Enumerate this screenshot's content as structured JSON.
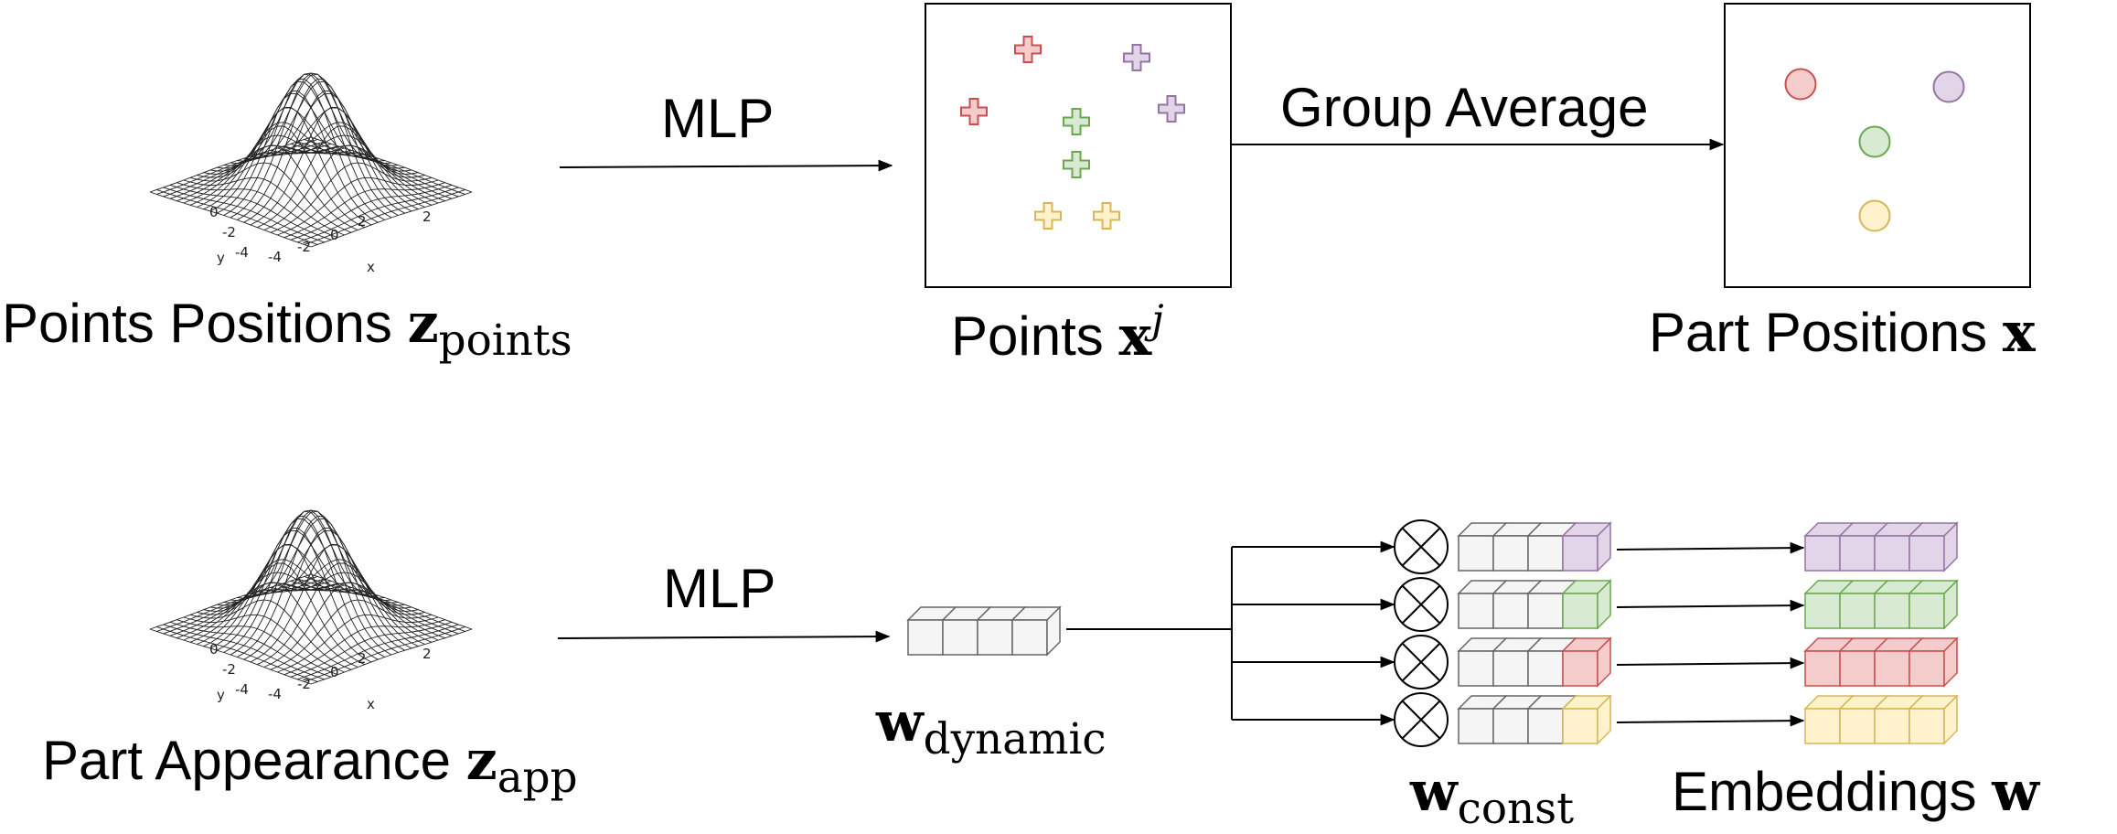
{
  "top_row": {
    "input_label": {
      "text": "Points Positions ",
      "var": "z",
      "sub": "points"
    },
    "mlp_label": "MLP",
    "points_label": {
      "text": "Points ",
      "var": "x",
      "sup": "j"
    },
    "group_average_label": "Group Average",
    "part_positions_label": {
      "text": "Part Positions ",
      "var": "x"
    },
    "points": [
      {
        "group": "red",
        "count": 2
      },
      {
        "group": "purple",
        "count": 2
      },
      {
        "group": "green",
        "count": 2
      },
      {
        "group": "yellow",
        "count": 2
      }
    ]
  },
  "bottom_row": {
    "input_label": {
      "text": "Part Appearance ",
      "var": "z",
      "sub": "app"
    },
    "mlp_label": "MLP",
    "w_dynamic_label": {
      "var": "w",
      "sub": "dynamic"
    },
    "w_const_label": {
      "var": "w",
      "sub": "const"
    },
    "embeddings_label": {
      "text": "Embeddings ",
      "var": "w"
    },
    "embedding_rows": [
      "purple",
      "green",
      "red",
      "yellow"
    ]
  },
  "gaussian_plot": {
    "tick_labels_axis1": [
      "0",
      "-2",
      "-4"
    ],
    "tick_labels_axis2": [
      "-4",
      "-2",
      "0",
      "2"
    ],
    "right_tick_label": "2",
    "axis_labels": [
      "y",
      "x"
    ]
  },
  "colors": {
    "red": {
      "stroke": "#c94f4f",
      "fill": "#f4cccc"
    },
    "green": {
      "stroke": "#6aa84f",
      "fill": "#d9ead3"
    },
    "purple": {
      "stroke": "#9673a6",
      "fill": "#e1d5e7"
    },
    "yellow": {
      "stroke": "#d6b656",
      "fill": "#fff2cc"
    },
    "gray": {
      "stroke": "#666666",
      "fill": "#f5f5f5"
    }
  }
}
